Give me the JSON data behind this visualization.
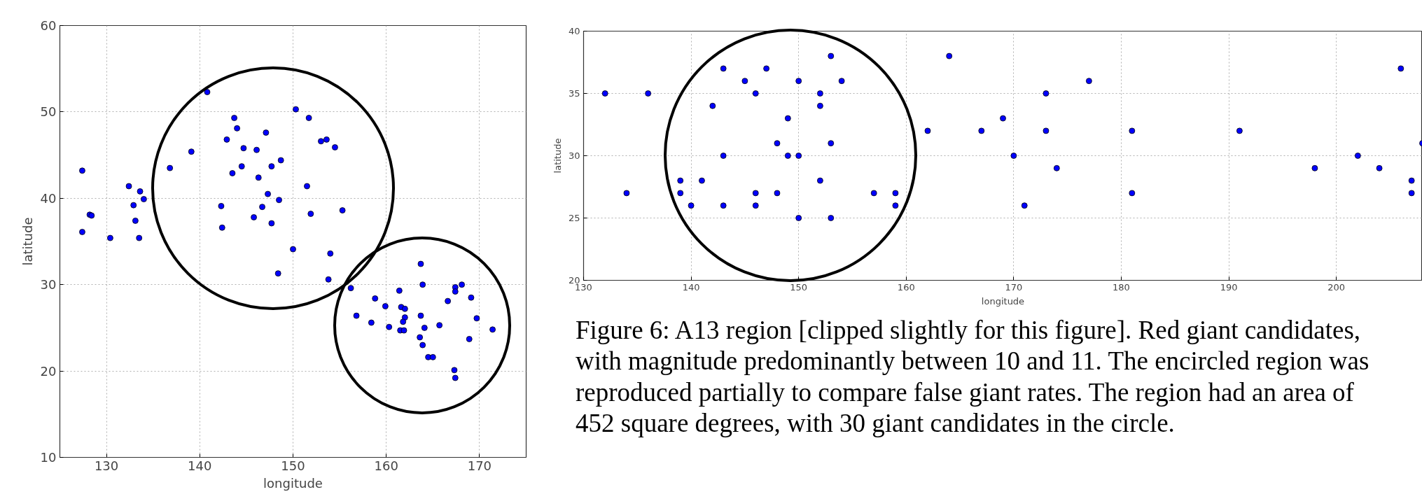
{
  "chart_data": [
    {
      "type": "scatter",
      "xlabel": "longitude",
      "ylabel": "latitude",
      "xlim": [
        125,
        175
      ],
      "ylim": [
        10,
        60
      ],
      "xticks": [
        130,
        140,
        150,
        160,
        170
      ],
      "yticks": [
        10,
        20,
        30,
        40,
        50,
        60
      ],
      "grid": true,
      "series": [
        {
          "marker": "circle",
          "color": "#0000ff",
          "x": [
            127.4,
            127.4,
            128.2,
            128.4,
            130.4,
            132.4,
            133.6,
            134.0,
            132.9,
            133.1,
            133.5,
            136.8,
            139.1,
            140.8,
            143.7,
            144.0,
            142.9,
            144.7,
            147.1,
            146.1,
            144.5,
            143.5,
            147.7,
            148.7,
            146.3,
            150.3,
            151.7,
            153.0,
            153.6,
            154.5,
            151.5,
            147.3,
            148.5,
            142.3,
            146.7,
            151.9,
            155.3,
            145.8,
            147.7,
            142.4,
            150.0,
            154.0,
            148.4,
            153.8,
            163.7,
            156.2,
            161.4,
            163.9,
            167.4,
            167.4,
            168.1,
            158.8,
            159.9,
            166.6,
            169.1,
            161.6,
            162.0,
            156.8,
            162.0,
            163.7,
            161.8,
            158.4,
            160.3,
            161.5,
            161.9,
            164.1,
            165.7,
            169.7,
            171.4,
            163.6,
            163.9,
            168.9,
            164.5,
            165.0,
            167.3,
            167.4
          ],
          "values": [
            43.2,
            36.1,
            38.1,
            38.0,
            35.4,
            41.4,
            40.8,
            39.9,
            39.2,
            37.4,
            35.4,
            43.5,
            45.4,
            52.3,
            49.3,
            48.1,
            46.8,
            45.8,
            47.6,
            45.6,
            43.7,
            42.9,
            43.7,
            44.4,
            42.4,
            50.3,
            49.3,
            46.6,
            46.8,
            45.9,
            41.4,
            40.5,
            39.8,
            39.1,
            39.0,
            38.2,
            38.6,
            37.8,
            37.1,
            36.6,
            34.1,
            33.6,
            31.3,
            30.6,
            32.4,
            29.6,
            29.3,
            30.0,
            29.7,
            29.2,
            30.0,
            28.4,
            27.5,
            28.1,
            28.5,
            27.4,
            27.2,
            26.4,
            26.2,
            26.4,
            25.7,
            25.6,
            25.1,
            24.7,
            24.7,
            25.0,
            25.3,
            26.1,
            24.8,
            23.9,
            23.0,
            23.7,
            21.6,
            21.6,
            20.1,
            19.2
          ]
        }
      ]
    },
    {
      "type": "scatter",
      "xlabel": "longitude",
      "ylabel": "latitude",
      "xlim": [
        130,
        208
      ],
      "ylim": [
        20,
        40
      ],
      "xticks": [
        130,
        140,
        150,
        160,
        170,
        180,
        190,
        200
      ],
      "yticks": [
        20,
        25,
        30,
        35,
        40
      ],
      "grid": true,
      "annotations": [
        "Figure 6: A13 region [clipped slightly for this figure]. Red giant candidates, with magnitude predominantly between 10 and 11. The encircled region was reproduced partially to compare false giant rates. The region had an area of 452 square degrees, with 30 giant candidates in the circle."
      ],
      "series": [
        {
          "marker": "circle",
          "color": "#0000ff",
          "x": [
            132,
            136,
            134,
            139,
            139,
            140,
            141,
            142,
            143,
            143,
            143,
            145,
            146,
            146,
            146,
            147,
            148,
            148,
            149,
            149,
            150,
            150,
            150,
            152,
            152,
            152,
            153,
            153,
            153,
            154,
            157,
            159,
            159,
            162,
            164,
            167,
            169,
            170,
            171,
            173,
            173,
            174,
            177,
            181,
            181,
            191,
            198,
            202,
            204,
            206,
            207,
            207,
            208
          ],
          "values": [
            35,
            35,
            27,
            28,
            27,
            26,
            28,
            34,
            37,
            30,
            26,
            36,
            35,
            27,
            26,
            37,
            31,
            27,
            33,
            30,
            36,
            30,
            25,
            35,
            34,
            28,
            38,
            31,
            25,
            36,
            27,
            27,
            26,
            32,
            38,
            32,
            33,
            30,
            26,
            35,
            32,
            29,
            36,
            32,
            27,
            32,
            29,
            30,
            29,
            37,
            28,
            27,
            31
          ]
        }
      ]
    }
  ]
}
